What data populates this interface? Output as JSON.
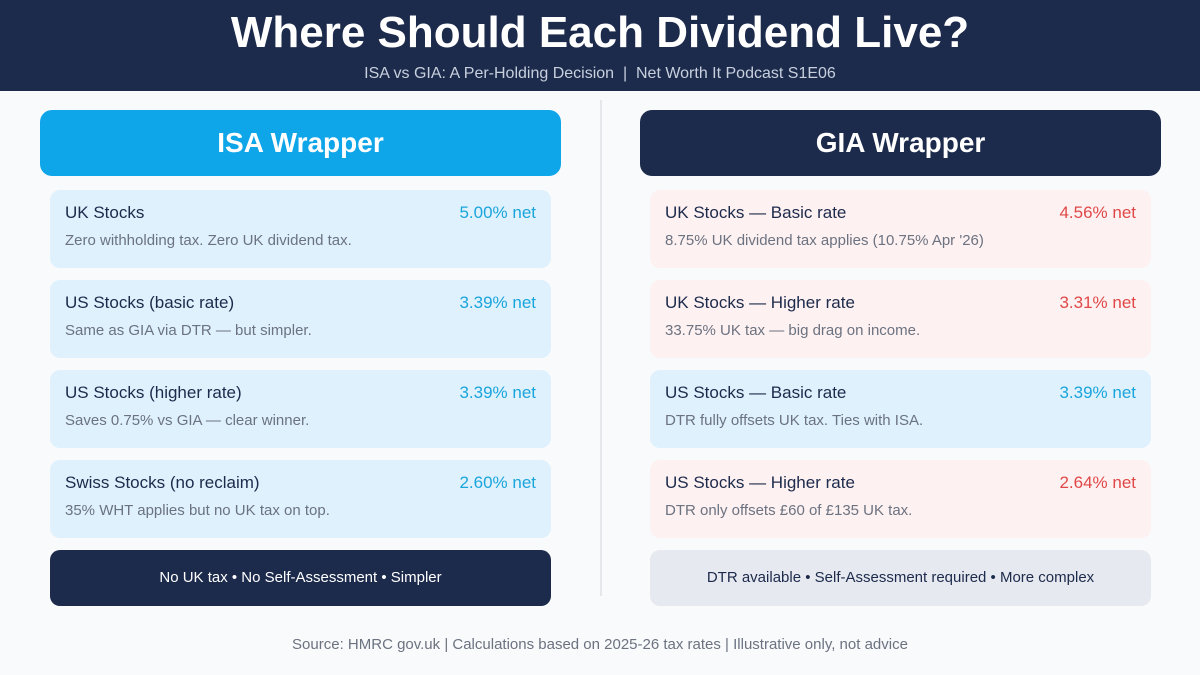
{
  "header": {
    "title": "Where Should Each Dividend Live?",
    "subtitle": "ISA vs GIA: A Per-Holding Decision  |  Net Worth It Podcast S1E06"
  },
  "colors": {
    "navy": "#1c2a4b",
    "isa_blue": "#0ea5e9",
    "positive_text": "#1aa5dc",
    "negative_text": "#e04848",
    "blue_card": "#dff1fd",
    "red_card": "#fef1f1"
  },
  "isa": {
    "heading": "ISA Wrapper",
    "cards": [
      {
        "title": "UK Stocks",
        "net": "5.00% net",
        "desc": "Zero withholding tax. Zero UK dividend tax.",
        "tone": "blue"
      },
      {
        "title": "US Stocks (basic rate)",
        "net": "3.39% net",
        "desc": "Same as GIA via DTR — but simpler.",
        "tone": "blue"
      },
      {
        "title": "US Stocks (higher rate)",
        "net": "3.39% net",
        "desc": "Saves 0.75% vs GIA — clear winner.",
        "tone": "blue"
      },
      {
        "title": "Swiss Stocks (no reclaim)",
        "net": "2.60% net",
        "desc": "35% WHT applies but no UK tax on top.",
        "tone": "blue"
      }
    ],
    "summary": "No UK tax • No Self-Assessment • Simpler"
  },
  "gia": {
    "heading": "GIA Wrapper",
    "cards": [
      {
        "title": "UK Stocks — Basic rate",
        "net": "4.56% net",
        "desc": "8.75% UK dividend tax applies (10.75% Apr '26)",
        "tone": "red"
      },
      {
        "title": "UK Stocks — Higher rate",
        "net": "3.31% net",
        "desc": "33.75% UK tax — big drag on income.",
        "tone": "red"
      },
      {
        "title": "US Stocks — Basic rate",
        "net": "3.39% net",
        "desc": "DTR fully offsets UK tax. Ties with ISA.",
        "tone": "blue"
      },
      {
        "title": "US Stocks — Higher rate",
        "net": "2.64% net",
        "desc": "DTR only offsets £60 of £135 UK tax.",
        "tone": "red"
      }
    ],
    "summary": "DTR available • Self-Assessment required • More complex"
  },
  "footer": "Source: HMRC gov.uk | Calculations based on 2025-26 tax rates | Illustrative only, not advice"
}
